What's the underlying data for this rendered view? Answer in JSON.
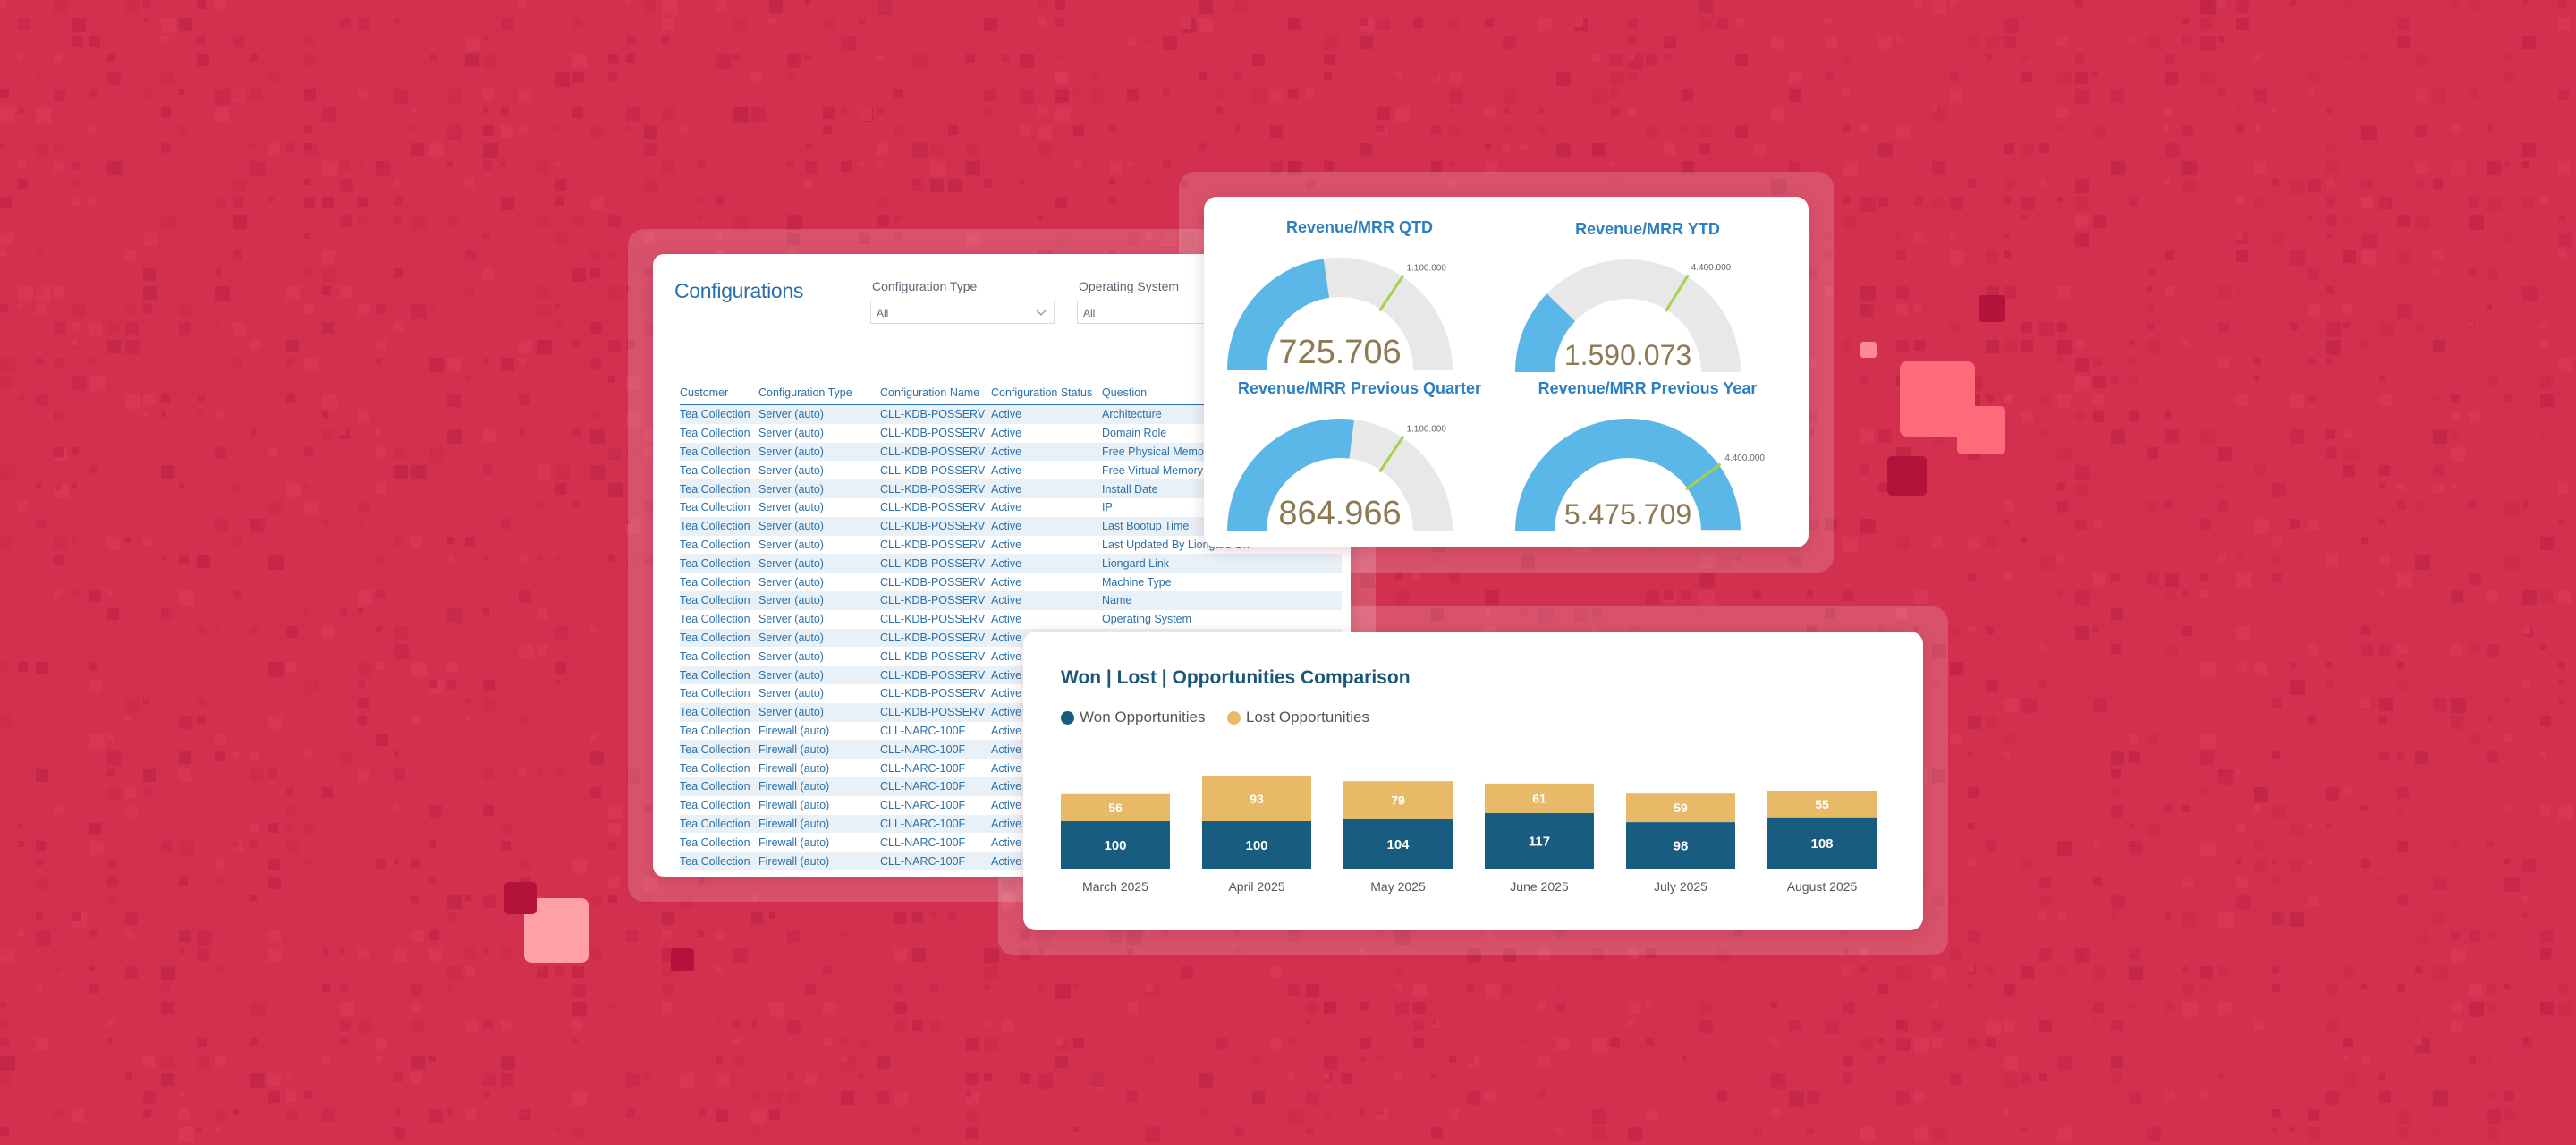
{
  "colors": {
    "background": "#d2304e",
    "won": "#185c80",
    "lost": "#e8b966",
    "gauge_fill": "#5ab7e8",
    "gauge_track": "#e8e8e8",
    "gauge_value_text": "#8e7a52",
    "target_line": "#a6d14a"
  },
  "configurations": {
    "title": "Configurations",
    "filters": [
      {
        "label": "Configuration Type",
        "value": "All"
      },
      {
        "label": "Operating System",
        "value": "All"
      }
    ],
    "columns": [
      "Customer",
      "Configuration Type",
      "Configuration Name",
      "Configuration Status",
      "Question"
    ],
    "rows": [
      [
        "Tea Collection",
        "Server (auto)",
        "CLL-KDB-POSSERV",
        "Active",
        "Architecture"
      ],
      [
        "Tea Collection",
        "Server (auto)",
        "CLL-KDB-POSSERV",
        "Active",
        "Domain Role"
      ],
      [
        "Tea Collection",
        "Server (auto)",
        "CLL-KDB-POSSERV",
        "Active",
        "Free Physical Memory"
      ],
      [
        "Tea Collection",
        "Server (auto)",
        "CLL-KDB-POSSERV",
        "Active",
        "Free Virtual Memory"
      ],
      [
        "Tea Collection",
        "Server (auto)",
        "CLL-KDB-POSSERV",
        "Active",
        "Install Date"
      ],
      [
        "Tea Collection",
        "Server (auto)",
        "CLL-KDB-POSSERV",
        "Active",
        "IP"
      ],
      [
        "Tea Collection",
        "Server (auto)",
        "CLL-KDB-POSSERV",
        "Active",
        "Last Bootup Time"
      ],
      [
        "Tea Collection",
        "Server (auto)",
        "CLL-KDB-POSSERV",
        "Active",
        "Last Updated By Liongard On"
      ],
      [
        "Tea Collection",
        "Server (auto)",
        "CLL-KDB-POSSERV",
        "Active",
        "Liongard Link"
      ],
      [
        "Tea Collection",
        "Server (auto)",
        "CLL-KDB-POSSERV",
        "Active",
        "Machine Type"
      ],
      [
        "Tea Collection",
        "Server (auto)",
        "CLL-KDB-POSSERV",
        "Active",
        "Name"
      ],
      [
        "Tea Collection",
        "Server (auto)",
        "CLL-KDB-POSSERV",
        "Active",
        "Operating System"
      ],
      [
        "Tea Collection",
        "Server (auto)",
        "CLL-KDB-POSSERV",
        "Active",
        ""
      ],
      [
        "Tea Collection",
        "Server (auto)",
        "CLL-KDB-POSSERV",
        "Active",
        ""
      ],
      [
        "Tea Collection",
        "Server (auto)",
        "CLL-KDB-POSSERV",
        "Active",
        ""
      ],
      [
        "Tea Collection",
        "Server (auto)",
        "CLL-KDB-POSSERV",
        "Active",
        ""
      ],
      [
        "Tea Collection",
        "Server (auto)",
        "CLL-KDB-POSSERV",
        "Active",
        ""
      ],
      [
        "Tea Collection",
        "Firewall (auto)",
        "CLL-NARC-100F",
        "Active",
        ""
      ],
      [
        "Tea Collection",
        "Firewall (auto)",
        "CLL-NARC-100F",
        "Active",
        ""
      ],
      [
        "Tea Collection",
        "Firewall (auto)",
        "CLL-NARC-100F",
        "Active",
        ""
      ],
      [
        "Tea Collection",
        "Firewall (auto)",
        "CLL-NARC-100F",
        "Active",
        ""
      ],
      [
        "Tea Collection",
        "Firewall (auto)",
        "CLL-NARC-100F",
        "Active",
        ""
      ],
      [
        "Tea Collection",
        "Firewall (auto)",
        "CLL-NARC-100F",
        "Active",
        ""
      ],
      [
        "Tea Collection",
        "Firewall (auto)",
        "CLL-NARC-100F",
        "Active",
        ""
      ],
      [
        "Tea Collection",
        "Firewall (auto)",
        "CLL-NARC-100F",
        "Active",
        ""
      ]
    ]
  },
  "gauges": [
    {
      "title": "Revenue/MRR QTD",
      "value": 725706,
      "value_label": "725.706",
      "max": 1600000,
      "target": 1100000,
      "target_label": "1.100.000"
    },
    {
      "title": "Revenue/MRR YTD",
      "value": 1590073,
      "value_label": "1.590.073",
      "max": 6500000,
      "target": 4400000,
      "target_label": "4.400.000"
    },
    {
      "title": "Revenue/MRR Previous Quarter",
      "value": 864966,
      "value_label": "864.966",
      "max": 1600000,
      "target": 1100000,
      "target_label": "1.100.000"
    },
    {
      "title": "Revenue/MRR Previous Year",
      "value": 5475709,
      "value_label": "5.475.709",
      "max": 5500000,
      "target": 4400000,
      "target_label": "4.400.000"
    }
  ],
  "won_lost": {
    "title": "Won | Lost | Opportunities Comparison",
    "legend": [
      "Won Opportunities",
      "Lost Opportunities"
    ]
  },
  "chart_data": {
    "type": "bar",
    "stacked": true,
    "title": "Won | Lost | Opportunities Comparison",
    "categories": [
      "March 2025",
      "April 2025",
      "May 2025",
      "June 2025",
      "July 2025",
      "August 2025"
    ],
    "series": [
      {
        "name": "Won Opportunities",
        "values": [
          100,
          100,
          104,
          117,
          98,
          108
        ]
      },
      {
        "name": "Lost Opportunities",
        "values": [
          56,
          93,
          79,
          61,
          59,
          55
        ]
      }
    ],
    "legend_position": "top-left",
    "grid": false
  }
}
